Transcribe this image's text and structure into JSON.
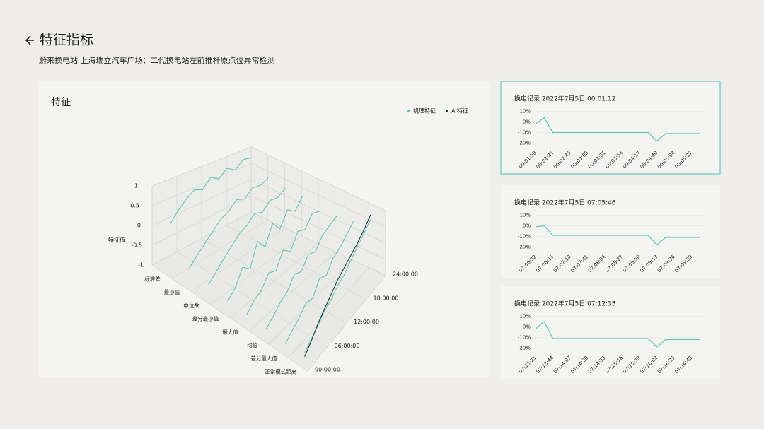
{
  "header": {
    "title": "特征指标",
    "subtitle": "蔚来换电站 上海瑞立汽车广场：二代换电站左前推杆原点位异常检测"
  },
  "chart_data": [
    {
      "type": "line3d",
      "title": "特征",
      "zlabel": "特征值",
      "categories": [
        "标准差",
        "最小值",
        "中位数",
        "差分最小值",
        "最大值",
        "均值",
        "差分最大值",
        "正常模式距离"
      ],
      "x": [
        2,
        4,
        6,
        8,
        10,
        12,
        14,
        16,
        18,
        20,
        22
      ],
      "xlim": [
        0,
        24
      ],
      "xticks": [
        {
          "value": 0,
          "label": "00:00:00"
        },
        {
          "value": 6,
          "label": "06:00:00"
        },
        {
          "value": 12,
          "label": "12:00:00"
        },
        {
          "value": 18,
          "label": "18:00:00"
        },
        {
          "value": 24,
          "label": "24:00:00"
        }
      ],
      "zlim": [
        -1,
        1
      ],
      "zticks": [
        1,
        0.5,
        0,
        -0.5,
        -1
      ],
      "grid": true,
      "legend": "top-right",
      "series": [
        {
          "name": "机理特征",
          "color": "#5cc9b5",
          "values": [
            [
              0.1,
              0.35,
              0.55,
              0.7,
              0.6,
              0.85,
              0.7,
              0.9,
              0.75,
              0.95,
              0.9
            ],
            [
              -0.7,
              -0.5,
              -0.3,
              -0.1,
              0.1,
              0.2,
              0.4,
              0.3,
              0.5,
              0.45,
              0.55
            ],
            [
              -0.8,
              -0.6,
              -0.4,
              -0.2,
              0.0,
              0.1,
              0.3,
              0.2,
              0.4,
              0.35,
              0.5
            ],
            [
              -0.9,
              -0.7,
              -0.3,
              -0.5,
              0.1,
              -0.2,
              0.3,
              0.0,
              0.4,
              0.2,
              0.5
            ],
            [
              -0.9,
              -0.7,
              -0.6,
              -0.3,
              -0.4,
              0.0,
              -0.2,
              0.2,
              0.1,
              0.4,
              0.3
            ],
            [
              -0.95,
              -0.8,
              -0.6,
              -0.5,
              -0.2,
              -0.3,
              0.0,
              -0.1,
              0.2,
              0.3,
              0.4
            ],
            [
              -1.0,
              -0.85,
              -0.7,
              -0.5,
              -0.55,
              -0.2,
              -0.3,
              0.0,
              0.1,
              0.3,
              0.5
            ],
            [
              -0.9,
              -0.75,
              -0.6,
              -0.4,
              -0.3,
              -0.1,
              0.0,
              0.2,
              0.4,
              0.6,
              0.8
            ]
          ]
        },
        {
          "name": "AI特征",
          "color": "#1e3b3b",
          "values": [
            null,
            null,
            null,
            null,
            null,
            null,
            null,
            [
              -1.0,
              -0.8,
              -0.55,
              -0.35,
              -0.15,
              0.05,
              0.2,
              0.35,
              0.5,
              0.7,
              0.95
            ]
          ]
        }
      ]
    },
    {
      "type": "line",
      "title": "换电记录 2022年7月5日 00:01:12",
      "color": "#5cc9b5",
      "selected": true,
      "categories": [
        "00:01:58",
        null,
        "00:02:21",
        null,
        "00:02:45",
        null,
        "00:03:08",
        null,
        "00:03:31",
        null,
        "00:03:54",
        null,
        "00:04:17",
        null,
        "00:04:40",
        null,
        "00:05:04",
        null,
        "00:05:27",
        null
      ],
      "values": [
        -2,
        4,
        -10,
        -10,
        -10,
        -10,
        -10,
        -10,
        -10,
        -10,
        -10,
        -10,
        -10,
        -10,
        -18,
        -11,
        -11,
        -11,
        -11,
        -11
      ],
      "ylim": [
        -23,
        13
      ],
      "yticks": [
        {
          "value": 10,
          "label": "10%"
        },
        {
          "value": 0,
          "label": "0%"
        },
        {
          "value": -10,
          "label": "-10%"
        },
        {
          "value": -20,
          "label": "-20%"
        }
      ]
    },
    {
      "type": "line",
      "title": "换电记录 2022年7月5日 07:05:46",
      "color": "#5cc9b5",
      "selected": false,
      "categories": [
        "07:06:32",
        null,
        "07:06:55",
        null,
        "07:07:18",
        null,
        "07:07:41",
        null,
        "07:08:04",
        null,
        "07:08:27",
        null,
        "07:08:50",
        null,
        "07:09:13",
        null,
        "07:09:36",
        null,
        "07:09:59",
        null
      ],
      "values": [
        -1,
        0,
        -9,
        -9,
        -9,
        -9,
        -9,
        -9,
        -9,
        -9,
        -9,
        -9,
        -9,
        -9,
        -18,
        -11,
        -11,
        -11,
        -11,
        -11
      ],
      "ylim": [
        -23,
        13
      ],
      "yticks": [
        {
          "value": 10,
          "label": "10%"
        },
        {
          "value": 0,
          "label": "0%"
        },
        {
          "value": -10,
          "label": "-10%"
        },
        {
          "value": -20,
          "label": "-20%"
        }
      ]
    },
    {
      "type": "line",
      "title": "换电记录 2022年7月5日 07:12:35",
      "color": "#5cc9b5",
      "selected": false,
      "categories": [
        "07:13:21",
        null,
        "07:13:44",
        null,
        "07:14:07",
        null,
        "07:14:30",
        null,
        "07:14:53",
        null,
        "07:15:16",
        null,
        "07:15:39",
        null,
        "07:16:02",
        null,
        "07:16:25",
        null,
        "07:16:48",
        null
      ],
      "values": [
        -2,
        5,
        -11,
        -11,
        -11,
        -11,
        -11,
        -11,
        -11,
        -11,
        -11,
        -11,
        -11,
        -11,
        -19,
        -12,
        -12,
        -12,
        -12,
        -12
      ],
      "ylim": [
        -23,
        13
      ],
      "yticks": [
        {
          "value": 10,
          "label": "10%"
        },
        {
          "value": 0,
          "label": "0%"
        },
        {
          "value": -10,
          "label": "-10%"
        },
        {
          "value": -20,
          "label": "-20%"
        }
      ]
    }
  ]
}
